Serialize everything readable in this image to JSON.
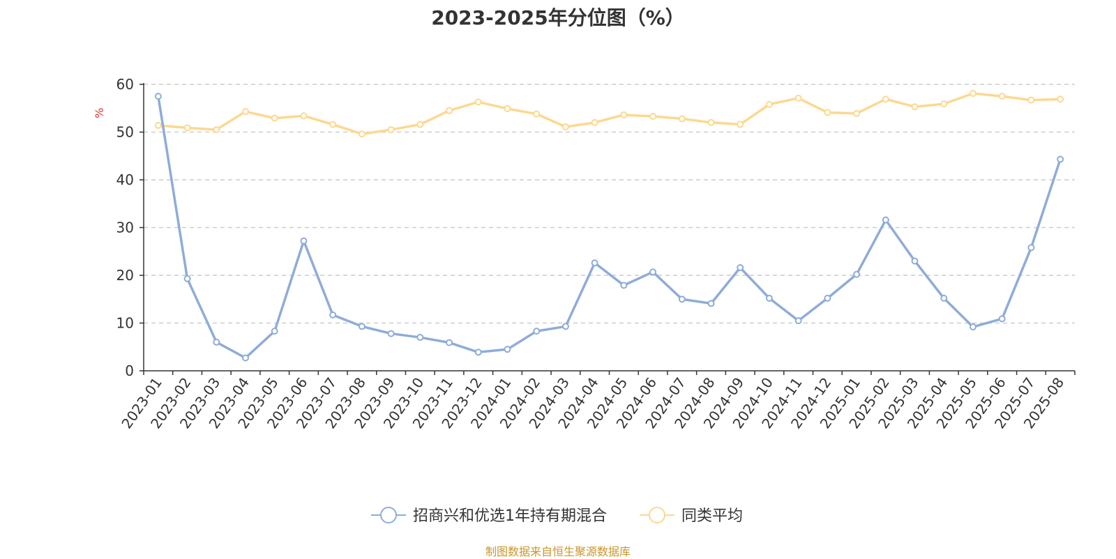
{
  "chart_data": {
    "type": "line",
    "title": "2023-2025年分位图（%）",
    "ylabel": "%",
    "ylim": [
      0,
      60
    ],
    "yticks": [
      0,
      10,
      20,
      30,
      40,
      50,
      60
    ],
    "grid": true,
    "legend_position": "bottom",
    "categories": [
      "2023-01",
      "2023-02",
      "2023-03",
      "2023-04",
      "2023-05",
      "2023-06",
      "2023-07",
      "2023-08",
      "2023-09",
      "2023-10",
      "2023-11",
      "2023-12",
      "2024-01",
      "2024-02",
      "2024-03",
      "2024-04",
      "2024-05",
      "2024-06",
      "2024-07",
      "2024-08",
      "2024-09",
      "2024-10",
      "2024-11",
      "2024-12",
      "2025-01",
      "2025-02",
      "2025-03",
      "2025-04",
      "2025-05",
      "2025-06",
      "2025-07",
      "2025-08"
    ],
    "series": [
      {
        "name": "招商兴和优选1年持有期混合",
        "color": "#8eacd8",
        "values": [
          57.5,
          19.3,
          6.0,
          2.7,
          8.3,
          27.2,
          11.7,
          9.3,
          7.8,
          7.0,
          5.9,
          3.9,
          4.5,
          8.3,
          9.3,
          22.6,
          17.9,
          20.7,
          15.0,
          14.1,
          21.6,
          15.2,
          10.5,
          15.2,
          20.2,
          31.6,
          23.0,
          15.2,
          9.2,
          10.9,
          25.8,
          44.3
        ]
      },
      {
        "name": "同类平均",
        "color": "#fcd890",
        "values": [
          51.4,
          50.9,
          50.5,
          54.3,
          52.9,
          53.4,
          51.6,
          49.6,
          50.5,
          51.6,
          54.5,
          56.3,
          54.9,
          53.8,
          51.1,
          52.0,
          53.6,
          53.3,
          52.8,
          52.0,
          51.6,
          55.8,
          57.1,
          54.1,
          53.9,
          56.9,
          55.3,
          55.9,
          58.1,
          57.5,
          56.7,
          56.9
        ]
      }
    ]
  },
  "source": "制图数据来自恒生聚源数据库"
}
